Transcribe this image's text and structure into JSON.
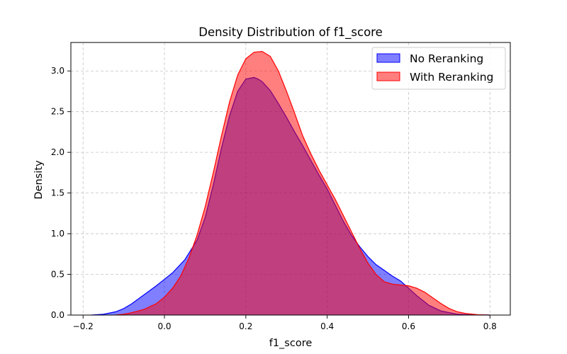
{
  "chart_data": {
    "type": "area",
    "title": "Density Distribution of f1_score",
    "xlabel": "f1_score",
    "ylabel": "Density",
    "xlim": [
      -0.23,
      0.85
    ],
    "ylim": [
      0,
      3.35
    ],
    "x_ticks": [
      -0.2,
      0.0,
      0.2,
      0.4,
      0.6,
      0.8
    ],
    "x_tick_labels": [
      "−0.2",
      "0.0",
      "0.2",
      "0.4",
      "0.6",
      "0.8"
    ],
    "y_ticks": [
      0.0,
      0.5,
      1.0,
      1.5,
      2.0,
      2.5,
      3.0
    ],
    "y_tick_labels": [
      "0.0",
      "0.5",
      "1.0",
      "1.5",
      "2.0",
      "2.5",
      "3.0"
    ],
    "grid": true,
    "legend_position": "top-right",
    "series": [
      {
        "name": "No Reranking",
        "color": "#0000ff",
        "fill": "#0000ff",
        "fill_opacity": 0.5,
        "x": [
          -0.18,
          -0.15,
          -0.12,
          -0.1,
          -0.08,
          -0.05,
          -0.02,
          0.0,
          0.02,
          0.05,
          0.08,
          0.1,
          0.12,
          0.14,
          0.16,
          0.18,
          0.2,
          0.22,
          0.23,
          0.24,
          0.26,
          0.28,
          0.3,
          0.32,
          0.34,
          0.36,
          0.38,
          0.4,
          0.42,
          0.44,
          0.46,
          0.48,
          0.5,
          0.52,
          0.54,
          0.56,
          0.58,
          0.6,
          0.62,
          0.65,
          0.68,
          0.7,
          0.72,
          0.75,
          0.78,
          0.8
        ],
        "y": [
          0.0,
          0.01,
          0.04,
          0.08,
          0.14,
          0.25,
          0.36,
          0.44,
          0.52,
          0.68,
          0.92,
          1.2,
          1.6,
          2.05,
          2.45,
          2.75,
          2.9,
          2.92,
          2.9,
          2.87,
          2.76,
          2.6,
          2.43,
          2.25,
          2.08,
          1.9,
          1.72,
          1.55,
          1.35,
          1.15,
          0.98,
          0.84,
          0.72,
          0.62,
          0.55,
          0.48,
          0.42,
          0.33,
          0.24,
          0.12,
          0.05,
          0.03,
          0.01,
          0.005,
          0.002,
          0.0
        ]
      },
      {
        "name": "With Reranking",
        "color": "#ff0000",
        "fill": "#ff0000",
        "fill_opacity": 0.5,
        "x": [
          -0.12,
          -0.1,
          -0.08,
          -0.05,
          -0.02,
          0.0,
          0.02,
          0.04,
          0.06,
          0.08,
          0.1,
          0.12,
          0.14,
          0.16,
          0.18,
          0.2,
          0.22,
          0.24,
          0.26,
          0.28,
          0.3,
          0.32,
          0.34,
          0.36,
          0.38,
          0.4,
          0.42,
          0.44,
          0.46,
          0.48,
          0.5,
          0.52,
          0.54,
          0.56,
          0.58,
          0.6,
          0.62,
          0.64,
          0.66,
          0.68,
          0.7,
          0.72,
          0.74,
          0.77,
          0.8
        ],
        "y": [
          0.0,
          0.01,
          0.03,
          0.07,
          0.14,
          0.22,
          0.33,
          0.48,
          0.7,
          0.98,
          1.33,
          1.75,
          2.2,
          2.62,
          2.95,
          3.15,
          3.23,
          3.24,
          3.18,
          3.0,
          2.75,
          2.48,
          2.2,
          1.98,
          1.78,
          1.6,
          1.42,
          1.22,
          1.02,
          0.82,
          0.64,
          0.5,
          0.41,
          0.38,
          0.37,
          0.36,
          0.33,
          0.28,
          0.21,
          0.14,
          0.08,
          0.04,
          0.02,
          0.005,
          0.0
        ]
      }
    ]
  }
}
